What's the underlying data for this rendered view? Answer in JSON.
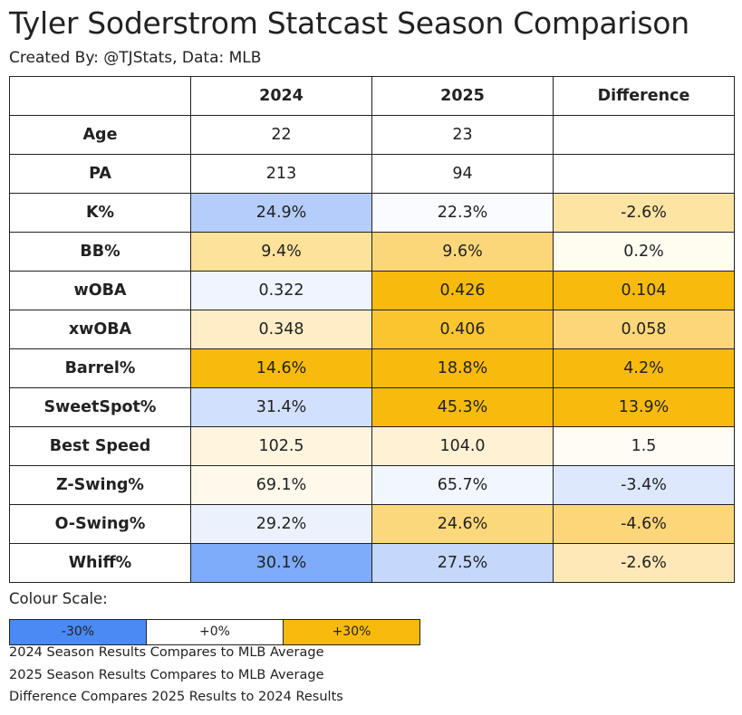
{
  "title": "Tyler Soderstrom Statcast Season Comparison",
  "subtitle": "Created By: @TJStats, Data: MLB",
  "chart_data": {
    "type": "table",
    "columns": [
      "",
      "2024",
      "2025",
      "Difference"
    ],
    "rows": [
      {
        "label": "Age",
        "values": [
          "22",
          "23",
          ""
        ],
        "colors": [
          "#ffffff",
          "#ffffff",
          "#ffffff"
        ]
      },
      {
        "label": "PA",
        "values": [
          "213",
          "94",
          ""
        ],
        "colors": [
          "#ffffff",
          "#ffffff",
          "#ffffff"
        ]
      },
      {
        "label": "K%",
        "values": [
          "24.9%",
          "22.3%",
          "-2.6%"
        ],
        "colors": [
          "#b5cdfb",
          "#f9fbff",
          "#fde4a3"
        ]
      },
      {
        "label": "BB%",
        "values": [
          "9.4%",
          "9.6%",
          "0.2%"
        ],
        "colors": [
          "#fde29a",
          "#fcd77a",
          "#fffcf0"
        ]
      },
      {
        "label": "wOBA",
        "values": [
          "0.322",
          "0.426",
          "0.104"
        ],
        "colors": [
          "#eff4ff",
          "#f8ba0c",
          "#f8ba0c"
        ]
      },
      {
        "label": "xwOBA",
        "values": [
          "0.348",
          "0.406",
          "0.058"
        ],
        "colors": [
          "#feedc6",
          "#fbc530",
          "#fcd679"
        ]
      },
      {
        "label": "Barrel%",
        "values": [
          "14.6%",
          "18.8%",
          "4.2%"
        ],
        "colors": [
          "#f8ba0c",
          "#f8ba0c",
          "#f8ba0c"
        ]
      },
      {
        "label": "SweetSpot%",
        "values": [
          "31.4%",
          "45.3%",
          "13.9%"
        ],
        "colors": [
          "#d1e0fd",
          "#f8ba0c",
          "#f8ba0c"
        ]
      },
      {
        "label": "Best Speed",
        "values": [
          "102.5",
          "104.0",
          "1.5"
        ],
        "colors": [
          "#fff5de",
          "#fff1d3",
          "#fffcf6"
        ]
      },
      {
        "label": "Z-Swing%",
        "values": [
          "69.1%",
          "65.7%",
          "-3.4%"
        ],
        "colors": [
          "#fff9ec",
          "#f2f6ff",
          "#dde8fd"
        ]
      },
      {
        "label": "O-Swing%",
        "values": [
          "29.2%",
          "24.6%",
          "-4.6%"
        ],
        "colors": [
          "#ebf2fe",
          "#fcd87c",
          "#fcd679"
        ]
      },
      {
        "label": "Whiff%",
        "values": [
          "30.1%",
          "27.5%",
          "-2.6%"
        ],
        "colors": [
          "#7eabfa",
          "#c5d8fc",
          "#fee8b7"
        ]
      }
    ]
  },
  "legend": {
    "label": "Colour Scale:",
    "stops": [
      {
        "label": "-30%",
        "color": "#4a8af4"
      },
      {
        "label": "+0%",
        "color": "#ffffff"
      },
      {
        "label": "+30%",
        "color": "#f8ba0c"
      }
    ]
  },
  "notes": [
    "2024 Season Results Compares to MLB Average",
    "2025 Season Results Compares to MLB Average",
    "Difference Compares 2025 Results to 2024 Results"
  ]
}
